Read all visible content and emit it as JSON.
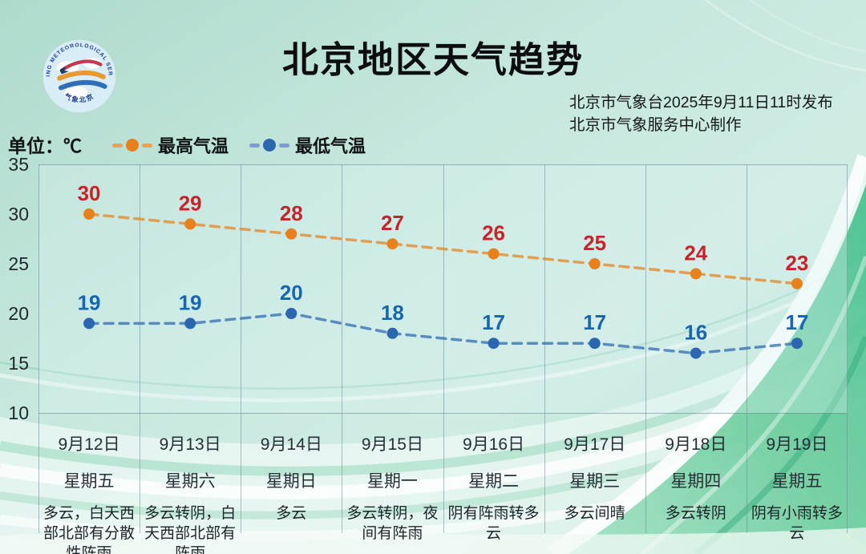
{
  "header": {
    "title": "北京地区天气趋势",
    "issued_line1": "北京市气象台2025年9月11日11时发布",
    "issued_line2": "北京市气象服务中心制作",
    "logo": {
      "ring_text": "BEIJING METEOROLOGICAL SERVICE",
      "bottom_text": "气象北京"
    }
  },
  "legend": {
    "unit_label": "单位：℃"
  },
  "chart_data": {
    "type": "line",
    "title": "北京地区天气趋势",
    "categories": [
      "9月12日",
      "9月13日",
      "9月14日",
      "9月15日",
      "9月16日",
      "9月17日",
      "9月18日",
      "9月19日"
    ],
    "weekdays": [
      "星期五",
      "星期六",
      "星期日",
      "星期一",
      "星期二",
      "星期三",
      "星期四",
      "星期五"
    ],
    "weather": [
      "多云，白天西部北部有分散性阵雨",
      "多云转阴，白天西部北部有阵雨",
      "多云",
      "多云转阴，夜间有阵雨",
      "阴有阵雨转多云",
      "多云间晴",
      "多云转阴",
      "阴有小雨转多云"
    ],
    "series": [
      {
        "key": "high",
        "name": "最高气温",
        "values": [
          30,
          29,
          28,
          27,
          26,
          25,
          24,
          23
        ],
        "color": "#e8811b",
        "label_color": "#c8232a"
      },
      {
        "key": "low",
        "name": "最低气温",
        "values": [
          19,
          19,
          20,
          18,
          17,
          17,
          16,
          17
        ],
        "color": "#2b66b0",
        "label_color": "#1766b0"
      }
    ],
    "ylim": [
      10,
      35
    ],
    "yticks": [
      35,
      30,
      25,
      20,
      15,
      10
    ],
    "grid": "vertical-only",
    "legend_position": "top-left",
    "line_style": "dashed"
  }
}
